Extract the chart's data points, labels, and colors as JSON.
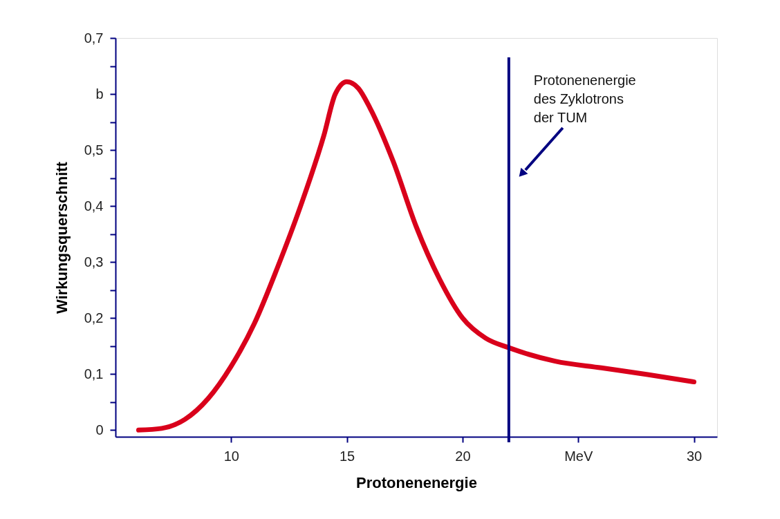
{
  "chart_data": {
    "type": "line",
    "xlabel": "Protonenenergie",
    "ylabel": "Wirkungsquerschnitt",
    "x": [
      6,
      7,
      8,
      9,
      10,
      11,
      12,
      13,
      14,
      14.5,
      15,
      15.5,
      16,
      17,
      18,
      19,
      20,
      21,
      22,
      24,
      26,
      28,
      30
    ],
    "series": [
      {
        "color": "#d9001b",
        "values": [
          0,
          0.003,
          0.019,
          0.056,
          0.114,
          0.19,
          0.29,
          0.4,
          0.525,
          0.6,
          0.622,
          0.61,
          0.575,
          0.48,
          0.363,
          0.27,
          0.2,
          0.164,
          0.147,
          0.123,
          0.111,
          0.099,
          0.086
        ]
      }
    ],
    "xlim": [
      5,
      31
    ],
    "xticks": [
      10,
      15,
      20,
      {
        "value": 25,
        "label": "MeV"
      },
      30
    ],
    "ylim": [
      -0.012,
      0.7
    ],
    "yticks": [
      {
        "value": 0,
        "label": "0"
      },
      {
        "value": 0.05,
        "label": null
      },
      {
        "value": 0.1,
        "label": "0,1"
      },
      {
        "value": 0.15,
        "label": null
      },
      {
        "value": 0.2,
        "label": "0,2"
      },
      {
        "value": 0.25,
        "label": null
      },
      {
        "value": 0.3,
        "label": "0,3"
      },
      {
        "value": 0.35,
        "label": null
      },
      {
        "value": 0.4,
        "label": "0,4"
      },
      {
        "value": 0.45,
        "label": null
      },
      {
        "value": 0.5,
        "label": "0,5"
      },
      {
        "value": 0.55,
        "label": null
      },
      {
        "value": 0.6,
        "label": "b"
      },
      {
        "value": 0.65,
        "label": null
      },
      {
        "value": 0.7,
        "label": "0,7"
      }
    ],
    "ref_lines": [
      {
        "axis": "x",
        "value": 22,
        "label": "Protonenenergie\ndes Zyklotrons\nder TUM",
        "color": "#000080"
      }
    ],
    "grid": false,
    "marker": "none",
    "line_style": "solid"
  }
}
